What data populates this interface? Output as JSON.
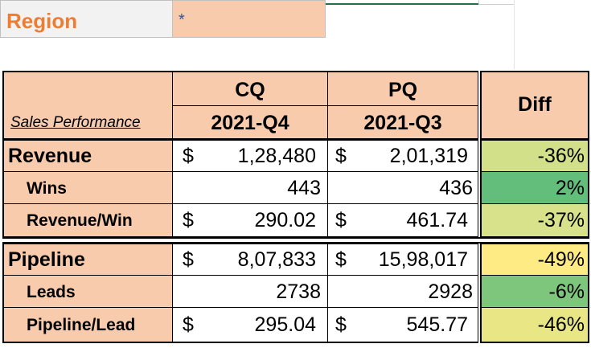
{
  "filter": {
    "label": "Region",
    "value": "*"
  },
  "header": {
    "section_label": "Sales Performance",
    "col1_title": "CQ",
    "col1_period": "2021-Q4",
    "col2_title": "PQ",
    "col2_period": "2021-Q3",
    "diff_title": "Diff"
  },
  "rows": [
    {
      "label": "Revenue",
      "cq_cur": "$",
      "cq": "1,28,480",
      "pq_cur": "$",
      "pq": "2,01,319",
      "diff": "-36%",
      "diff_color": "#d3e08a"
    },
    {
      "label": "Wins",
      "cq_cur": "",
      "cq": "443",
      "pq_cur": "",
      "pq": "436",
      "diff": "2%",
      "diff_color": "#63be7b"
    },
    {
      "label": "Revenue/Win",
      "cq_cur": "$",
      "cq": "290.02",
      "pq_cur": "$",
      "pq": "461.74",
      "diff": "-37%",
      "diff_color": "#d8e28a"
    },
    {
      "label": "Pipeline",
      "cq_cur": "$",
      "cq": "8,07,833",
      "pq_cur": "$",
      "pq": "15,98,017",
      "diff": "-49%",
      "diff_color": "#ffeb84"
    },
    {
      "label": "Leads",
      "cq_cur": "",
      "cq": "2738",
      "pq_cur": "",
      "pq": "2928",
      "diff": "-6%",
      "diff_color": "#7dc67c"
    },
    {
      "label": "Pipeline/Lead",
      "cq_cur": "$",
      "cq": "295.04",
      "pq_cur": "$",
      "pq": "545.77",
      "diff": "-46%",
      "diff_color": "#e9e685"
    }
  ],
  "colors": {
    "header_fill": "#f8cbad",
    "filter_label_color": "#ed7d31",
    "filter_value_color": "#2f5597"
  }
}
